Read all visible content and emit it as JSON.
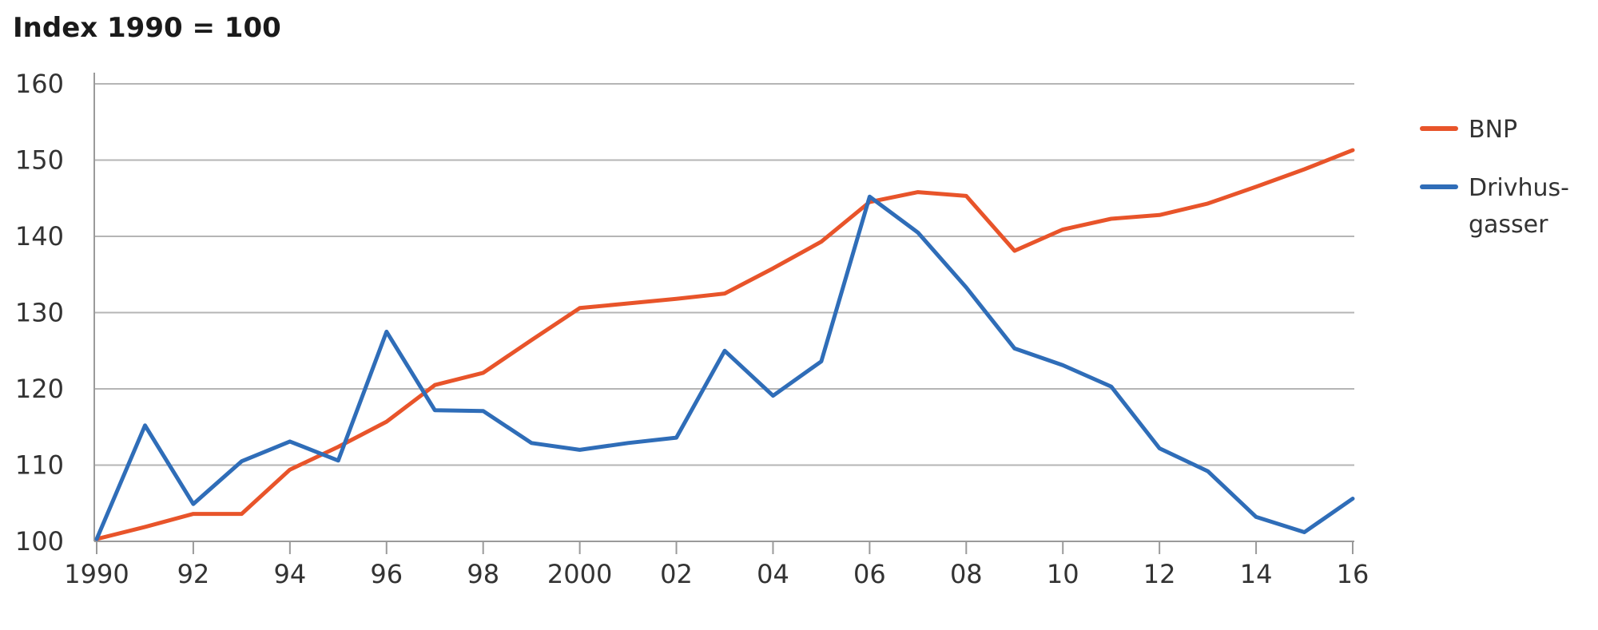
{
  "chart_data": {
    "type": "line",
    "title": "Index 1990 = 100",
    "xlabel": "",
    "ylabel": "",
    "x": [
      1990,
      1991,
      1992,
      1993,
      1994,
      1995,
      1996,
      1997,
      1998,
      1999,
      2000,
      2001,
      2002,
      2003,
      2004,
      2005,
      2006,
      2007,
      2008,
      2009,
      2010,
      2011,
      2012,
      2013,
      2014,
      2015,
      2016
    ],
    "xlim": [
      1990,
      2016
    ],
    "ylim": [
      100,
      160
    ],
    "x_ticks": [
      {
        "value": 1990,
        "label": "1990"
      },
      {
        "value": 1992,
        "label": "92"
      },
      {
        "value": 1994,
        "label": "94"
      },
      {
        "value": 1996,
        "label": "96"
      },
      {
        "value": 1998,
        "label": "98"
      },
      {
        "value": 2000,
        "label": "2000"
      },
      {
        "value": 2002,
        "label": "02"
      },
      {
        "value": 2004,
        "label": "04"
      },
      {
        "value": 2006,
        "label": "06"
      },
      {
        "value": 2008,
        "label": "08"
      },
      {
        "value": 2010,
        "label": "10"
      },
      {
        "value": 2012,
        "label": "12"
      },
      {
        "value": 2014,
        "label": "14"
      },
      {
        "value": 2016,
        "label": "16"
      }
    ],
    "y_ticks": [
      {
        "value": 100,
        "label": "100"
      },
      {
        "value": 110,
        "label": "110"
      },
      {
        "value": 120,
        "label": "120"
      },
      {
        "value": 130,
        "label": "130"
      },
      {
        "value": 140,
        "label": "140"
      },
      {
        "value": 150,
        "label": "150"
      },
      {
        "value": 160,
        "label": "160"
      }
    ],
    "grid": "horizontal",
    "legend_position": "right",
    "series": [
      {
        "name": "BNP",
        "legend_lines": [
          "BNP"
        ],
        "color": "#e8542a",
        "values": [
          100.3,
          101.9,
          103.6,
          103.6,
          109.4,
          112.4,
          115.7,
          120.5,
          122.1,
          126.4,
          130.6,
          131.2,
          131.8,
          132.5,
          135.8,
          139.3,
          144.5,
          145.8,
          145.3,
          138.1,
          140.9,
          142.3,
          142.8,
          144.3,
          146.5,
          148.8,
          151.3
        ]
      },
      {
        "name": "Drivhus-gasser",
        "legend_lines": [
          "Drivhus-",
          "gasser"
        ],
        "color": "#2f6db8",
        "values": [
          100.3,
          115.2,
          104.9,
          110.5,
          113.1,
          110.6,
          127.5,
          117.2,
          117.1,
          112.9,
          112.0,
          112.9,
          113.6,
          125.0,
          119.1,
          123.6,
          145.2,
          140.5,
          133.3,
          125.3,
          123.1,
          120.3,
          112.2,
          109.2,
          103.2,
          101.2,
          105.6
        ]
      }
    ]
  }
}
